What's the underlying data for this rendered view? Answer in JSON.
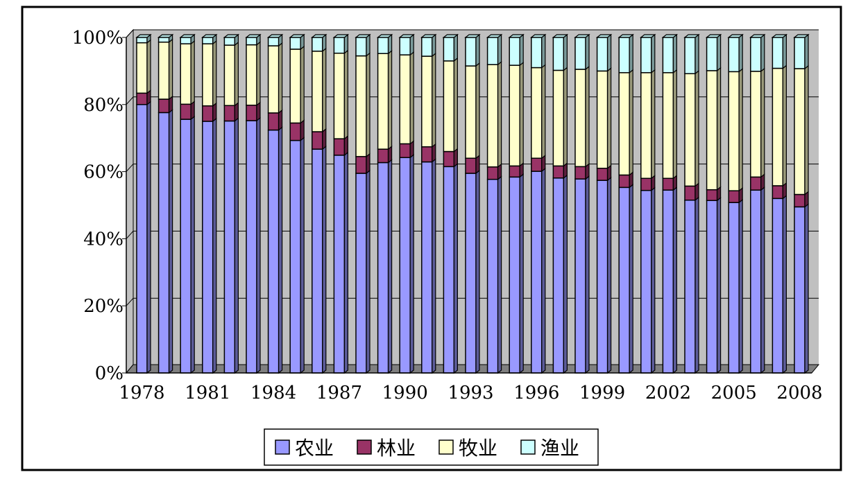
{
  "chart_data": {
    "type": "bar",
    "stacked": true,
    "normalized": true,
    "title": "",
    "xlabel": "",
    "ylabel": "",
    "ylim": [
      0,
      100
    ],
    "yticks": [
      "0%",
      "20%",
      "40%",
      "60%",
      "80%",
      "100%"
    ],
    "x_tick_labels": [
      "1978",
      "1981",
      "1984",
      "1987",
      "1990",
      "1993",
      "1996",
      "1999",
      "2002",
      "2005",
      "2008"
    ],
    "categories": [
      "1978",
      "1979",
      "1980",
      "1981",
      "1982",
      "1983",
      "1984",
      "1985",
      "1986",
      "1987",
      "1988",
      "1989",
      "1990",
      "1991",
      "1992",
      "1993",
      "1994",
      "1995",
      "1996",
      "1997",
      "1998",
      "1999",
      "2000",
      "2001",
      "2002",
      "2003",
      "2004",
      "2005",
      "2006",
      "2007",
      "2008"
    ],
    "grid": true,
    "legend_position": "bottom",
    "series": [
      {
        "name": "农业",
        "color": "#9999ff",
        "values": [
          80.0,
          77.6,
          75.6,
          75.0,
          75.1,
          75.2,
          72.4,
          69.3,
          66.7,
          64.9,
          59.5,
          62.7,
          64.2,
          62.9,
          61.5,
          59.5,
          57.7,
          58.4,
          60.1,
          58.1,
          57.8,
          57.4,
          55.3,
          54.4,
          54.5,
          51.5,
          51.4,
          50.8,
          54.5,
          52.0,
          49.5
        ]
      },
      {
        "name": "林业",
        "color": "#993366",
        "values": [
          3.4,
          4.0,
          4.5,
          4.6,
          4.6,
          4.6,
          5.1,
          5.2,
          5.2,
          4.9,
          5.0,
          4.0,
          4.1,
          4.5,
          4.5,
          4.5,
          3.7,
          3.3,
          3.9,
          3.6,
          3.7,
          3.6,
          3.7,
          3.6,
          3.5,
          4.2,
          3.2,
          3.5,
          3.9,
          3.8,
          3.7
        ]
      },
      {
        "name": "牧业",
        "color": "#ffffcc",
        "values": [
          15.0,
          17.0,
          18.0,
          18.5,
          18.0,
          18.0,
          20.0,
          22.0,
          24.0,
          25.5,
          30.0,
          28.5,
          26.5,
          27.0,
          27.0,
          27.5,
          30.5,
          30.0,
          27.0,
          28.5,
          29.0,
          29.0,
          30.5,
          31.5,
          31.5,
          33.5,
          35.5,
          35.5,
          31.5,
          35.0,
          37.5
        ]
      },
      {
        "name": "渔业",
        "color": "#ccffff",
        "values": [
          1.6,
          1.4,
          1.9,
          1.9,
          2.3,
          2.2,
          2.5,
          3.5,
          4.1,
          4.7,
          5.5,
          4.8,
          5.2,
          5.6,
          7.0,
          8.5,
          8.1,
          8.3,
          9.0,
          9.8,
          9.5,
          10.0,
          10.5,
          10.5,
          10.5,
          10.8,
          9.9,
          10.2,
          10.1,
          9.2,
          9.3
        ]
      }
    ]
  }
}
